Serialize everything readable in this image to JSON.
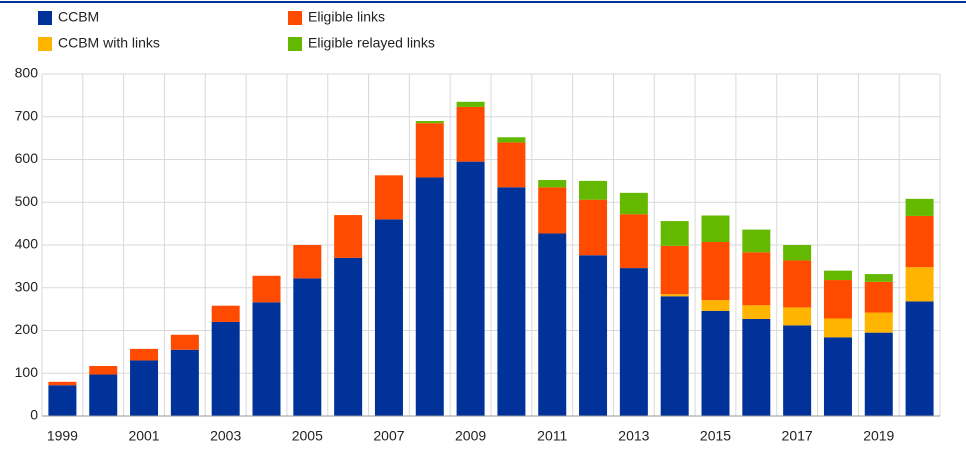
{
  "chart_data": {
    "type": "stacked_bar",
    "categories": [
      "1999",
      null,
      "2001",
      null,
      "2003",
      null,
      "2005",
      null,
      "2007",
      null,
      "2009",
      null,
      "2011",
      null,
      "2013",
      null,
      "2015",
      null,
      "2017",
      null,
      "2019",
      null
    ],
    "series": [
      {
        "name": "CCBM",
        "color": "#003299",
        "values": [
          72,
          97,
          130,
          155,
          220,
          266,
          322,
          370,
          460,
          558,
          595,
          535,
          427,
          376,
          346,
          280,
          246,
          227,
          212,
          184,
          195,
          268
        ]
      },
      {
        "name": "CCBM with links",
        "color": "#ffb400",
        "values": [
          0,
          0,
          0,
          0,
          0,
          0,
          0,
          0,
          0,
          0,
          0,
          0,
          0,
          0,
          0,
          5,
          25,
          32,
          42,
          44,
          47,
          80
        ]
      },
      {
        "name": "Eligible links",
        "color": "#ff4b00",
        "values": [
          8,
          20,
          27,
          35,
          38,
          62,
          78,
          100,
          103,
          127,
          128,
          105,
          108,
          130,
          126,
          113,
          136,
          124,
          110,
          90,
          72,
          120
        ]
      },
      {
        "name": "Eligible relayed links",
        "color": "#65b800",
        "values": [
          0,
          0,
          0,
          0,
          0,
          0,
          0,
          0,
          0,
          5,
          12,
          12,
          17,
          44,
          50,
          58,
          62,
          53,
          36,
          22,
          18,
          40
        ]
      }
    ],
    "ylim": [
      0,
      800
    ],
    "yticks": [
      0,
      100,
      200,
      300,
      400,
      500,
      600,
      700,
      800
    ],
    "grid": true
  }
}
